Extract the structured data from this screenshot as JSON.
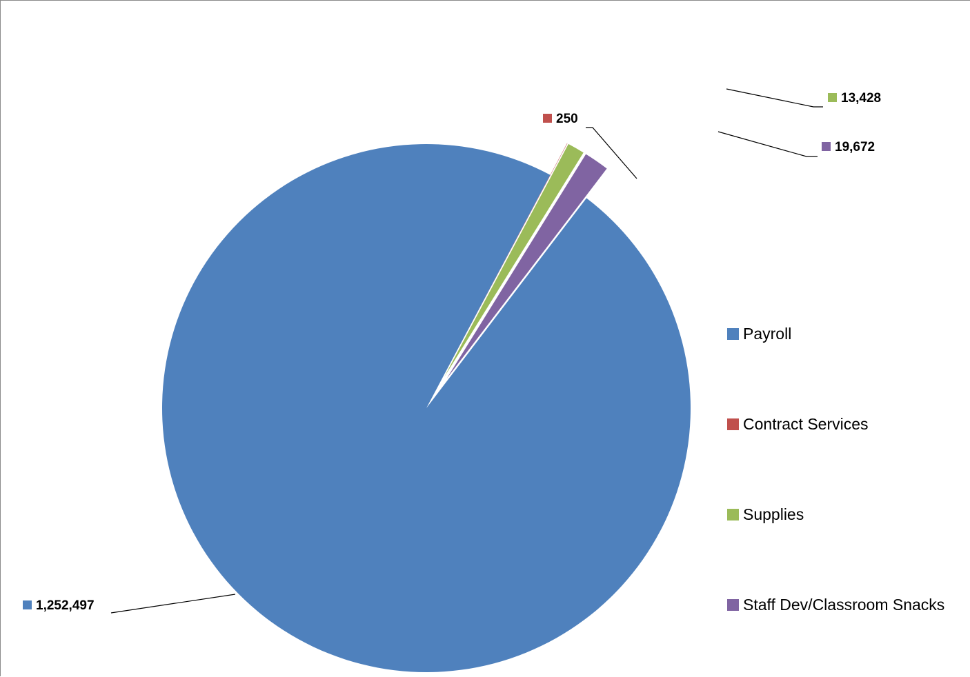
{
  "chart_data": {
    "type": "pie",
    "title": "",
    "categories": [
      "Payroll",
      "Contract Services",
      "Supplies",
      "Staff Dev/Classroom Snacks"
    ],
    "values": [
      1252497,
      250,
      13428,
      19672
    ],
    "value_labels": [
      "1,252,497",
      "250",
      "13,428",
      "19,672"
    ],
    "colors": [
      "#4F81BD",
      "#C0504D",
      "#9BBB59",
      "#8064A2"
    ],
    "exploded": [
      false,
      true,
      true,
      true
    ],
    "legend_position": "right",
    "data_labels": "outside-with-leader-lines"
  }
}
